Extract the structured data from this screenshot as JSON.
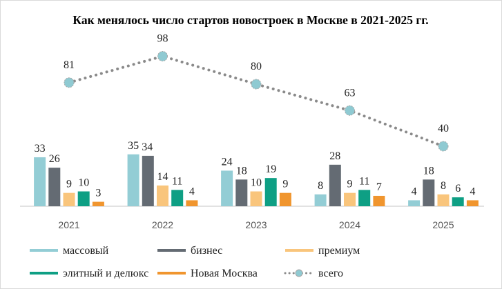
{
  "chart_data": {
    "type": "bar",
    "title": "Как менялось число стартов  новостроек в Москве в 2021-2025 гг.",
    "categories": [
      "2021",
      "2022",
      "2023",
      "2024",
      "2025"
    ],
    "series": [
      {
        "name": "массовый",
        "color": "#93cdd5",
        "values": [
          33,
          35,
          24,
          8,
          4
        ]
      },
      {
        "name": "бизнес",
        "color": "#646b73",
        "values": [
          26,
          34,
          18,
          28,
          18
        ]
      },
      {
        "name": "премиум",
        "color": "#f9c57c",
        "values": [
          9,
          14,
          10,
          9,
          8
        ]
      },
      {
        "name": "элитный и делюкс",
        "color": "#0e9f84",
        "values": [
          10,
          11,
          19,
          11,
          6
        ]
      },
      {
        "name": "Новая Москва",
        "color": "#f0952e",
        "values": [
          3,
          4,
          9,
          7,
          4
        ]
      }
    ],
    "line": {
      "name": "всего",
      "type": "line",
      "style": "dotted",
      "color": "#8a8a8a",
      "marker_color": "#8fcad2",
      "values": [
        81,
        98,
        80,
        63,
        40
      ]
    },
    "xlabel": "",
    "ylabel": "",
    "grid": false,
    "legend": "bottom"
  }
}
